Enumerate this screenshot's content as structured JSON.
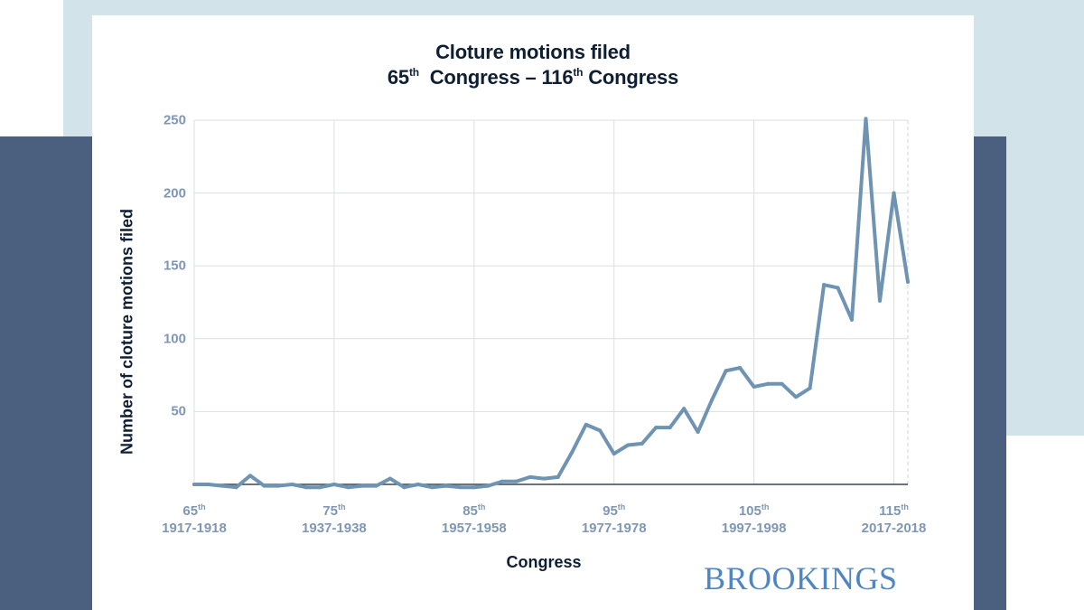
{
  "chart_data": {
    "type": "line",
    "title_line1": "Cloture motions filed",
    "title_line2": {
      "start_num": "65",
      "start_suffix": "th",
      "middle": "Congress – 116",
      "end_suffix": "th",
      "end_word": "Congress"
    },
    "xlabel": "Congress",
    "ylabel": "Number of cloture motions filed",
    "ylim": [
      0,
      250
    ],
    "xlim": [
      65,
      116
    ],
    "yticks": [
      {
        "value": 50,
        "label": "50"
      },
      {
        "value": 100,
        "label": "100"
      },
      {
        "value": 150,
        "label": "150"
      },
      {
        "value": 200,
        "label": "200"
      },
      {
        "value": 250,
        "label": "250"
      }
    ],
    "xticks": [
      {
        "value": 65,
        "num": "65",
        "suffix": "th",
        "years": "1917-1918"
      },
      {
        "value": 75,
        "num": "75",
        "suffix": "th",
        "years": "1937-1938"
      },
      {
        "value": 85,
        "num": "85",
        "suffix": "th",
        "years": "1957-1958"
      },
      {
        "value": 95,
        "num": "95",
        "suffix": "th",
        "years": "1977-1978"
      },
      {
        "value": 105,
        "num": "105",
        "suffix": "th",
        "years": "1997-1998"
      },
      {
        "value": 115,
        "num": "115",
        "suffix": "th",
        "years": "2017-2018"
      }
    ],
    "grid": true,
    "series_color": "#6e93b3",
    "series": [
      {
        "x": [
          65,
          66,
          67,
          68,
          69,
          70,
          71,
          72,
          73,
          74,
          75,
          76,
          77,
          78,
          79,
          80,
          81,
          82,
          83,
          84,
          85,
          86,
          87,
          88,
          89,
          90,
          91,
          92,
          93,
          94,
          95,
          96,
          97,
          98,
          99,
          100,
          101,
          102,
          103,
          104,
          105,
          106,
          107,
          108,
          109,
          110,
          111,
          112,
          113,
          114,
          115,
          116
        ],
        "values": [
          0,
          0,
          -1,
          -2,
          6,
          -1,
          -1,
          0,
          -2,
          -2,
          0,
          -2,
          -1,
          -1,
          4,
          -2,
          0,
          -2,
          -1,
          -2,
          -2,
          -1,
          2,
          2,
          5,
          4,
          5,
          22,
          41,
          37,
          21,
          27,
          28,
          39,
          39,
          52,
          36,
          58,
          78,
          80,
          67,
          69,
          69,
          60,
          66,
          137,
          135,
          113,
          251,
          126,
          200,
          139
        ]
      }
    ]
  },
  "branding": {
    "logo_text": "BROOKINGS"
  },
  "colors": {
    "background_light": "#d3e3ea",
    "background_dark": "#4b607f",
    "title": "#0f1f33",
    "tick_labels": "#7f97b3",
    "logo": "#4f86c2"
  }
}
